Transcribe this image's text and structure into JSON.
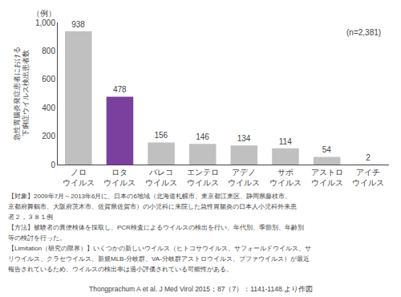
{
  "chart_data": {
    "type": "bar",
    "categories": [
      "ノロ\nウイルス",
      "ロタ\nウイルス",
      "パレコ\nウイルス",
      "エンテロ\nウイルス",
      "アデノ\nウイルス",
      "サポ\nウイルス",
      "アストロ\nウイルス",
      "アイチ\nウイルス"
    ],
    "values": [
      938,
      478,
      156,
      146,
      134,
      114,
      54,
      2
    ],
    "colors": [
      "#c0c0c0",
      "#7b3f9e",
      "#c0c0c0",
      "#c0c0c0",
      "#c0c0c0",
      "#c0c0c0",
      "#c0c0c0",
      "#c0c0c0"
    ],
    "ylim": [
      0,
      1000
    ],
    "yticks": [
      0,
      200,
      400,
      600,
      800,
      {
        "value": 1000,
        "label": "1,000"
      }
    ],
    "ylabel": "急性胃腸炎発症患者における\n下痢症ウイルス検出患者数",
    "data_labels": true,
    "grid": false,
    "annotations": [
      "（例）",
      "(n=2,381)"
    ],
    "body_lines": [
      "【対象】2009年7月～2013年6月に、日本の6地域（北海道札幌市、東京都江東区、静岡県藤枝市、",
      "京都府舞鶴市、大阪府茨木市、佐賀県佐賀市）の小児科に来院した急性胃腸炎の日本人小児科外来患",
      "者２，３８１例",
      "【方法】被験者の糞便検体を採取し、PCR検査によるウイルスの検出を行い、年代別、季節別、年齢別",
      "等の検討を行った。",
      "【Limitation（研究の限界）】いくつかの新しいウイルス（ヒトコサウイルス、サフォールドウイルス、サ",
      "リウイルス、クラセウイルス、新規MLB-分岐群、VA-分岐群アストロウイルス、ブファウイルス）が最近",
      "報告されているため、ウイルスの検出率は過小評価されている可能性がある。"
    ],
    "citation": "Thongprachum A et al. J Med Virol 2015；87（7）：1141-1148.より作図"
  }
}
